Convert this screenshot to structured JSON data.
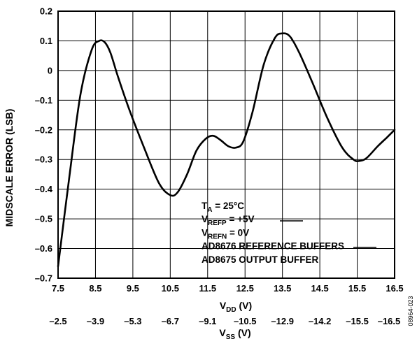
{
  "chart_data": {
    "type": "line",
    "x_label_main": "V",
    "x_label_sub": "DD",
    "x_label_unit": " (V)",
    "x2_label_main": "V",
    "x2_label_sub": "SS",
    "x2_label_unit": " (V)",
    "ylabel": "MIDSCALE ERROR (LSB)",
    "xlim": [
      7.5,
      16.5
    ],
    "ylim": [
      -0.7,
      0.2
    ],
    "x_ticks": [
      "7.5",
      "8.5",
      "9.5",
      "10.5",
      "11.5",
      "12.5",
      "13.5",
      "14.5",
      "15.5",
      "16.5"
    ],
    "x2_ticks": [
      "–2.5",
      "–3.9",
      "–5.3",
      "–6.7",
      "–9.1",
      "–10.5",
      "–12.9",
      "–14.2",
      "–15.5",
      "–16.5"
    ],
    "y_ticks": [
      "0.2",
      "0.1",
      "0",
      "–0.1",
      "–0.2",
      "–0.3",
      "–0.4",
      "–0.5",
      "–0.6",
      "–0.7"
    ],
    "grid": true,
    "series": [
      {
        "x": [
          7.5,
          7.8,
          8.1,
          8.4,
          8.6,
          8.75,
          8.9,
          9.1,
          9.4,
          9.8,
          10.2,
          10.5,
          10.7,
          10.95,
          11.2,
          11.45,
          11.65,
          11.85,
          12.05,
          12.25,
          12.45,
          12.7,
          13.0,
          13.3,
          13.5,
          13.7,
          13.95,
          14.3,
          14.7,
          15.1,
          15.4,
          15.55,
          15.75,
          16.05,
          16.3,
          16.5
        ],
        "y": [
          -0.66,
          -0.36,
          -0.08,
          0.07,
          0.1,
          0.095,
          0.06,
          -0.02,
          -0.13,
          -0.26,
          -0.38,
          -0.42,
          -0.41,
          -0.35,
          -0.27,
          -0.23,
          -0.22,
          -0.235,
          -0.255,
          -0.26,
          -0.24,
          -0.14,
          0.02,
          0.11,
          0.125,
          0.115,
          0.06,
          -0.04,
          -0.16,
          -0.26,
          -0.3,
          -0.305,
          -0.295,
          -0.255,
          -0.225,
          -0.2
        ]
      }
    ],
    "annotations": [
      {
        "main": "T",
        "sub": "A",
        "rest": " = 25°C"
      },
      {
        "main": "V",
        "sub": "REFP",
        "rest": " = +5V"
      },
      {
        "main": "V",
        "sub": "REFN",
        "rest": " = 0V"
      },
      {
        "main": "AD8676 REFERENCE BUFFERS",
        "sub": "",
        "rest": ""
      },
      {
        "main": "AD8675 OUTPUT BUFFER",
        "sub": "",
        "rest": ""
      }
    ],
    "figure_id": "08964-023"
  }
}
